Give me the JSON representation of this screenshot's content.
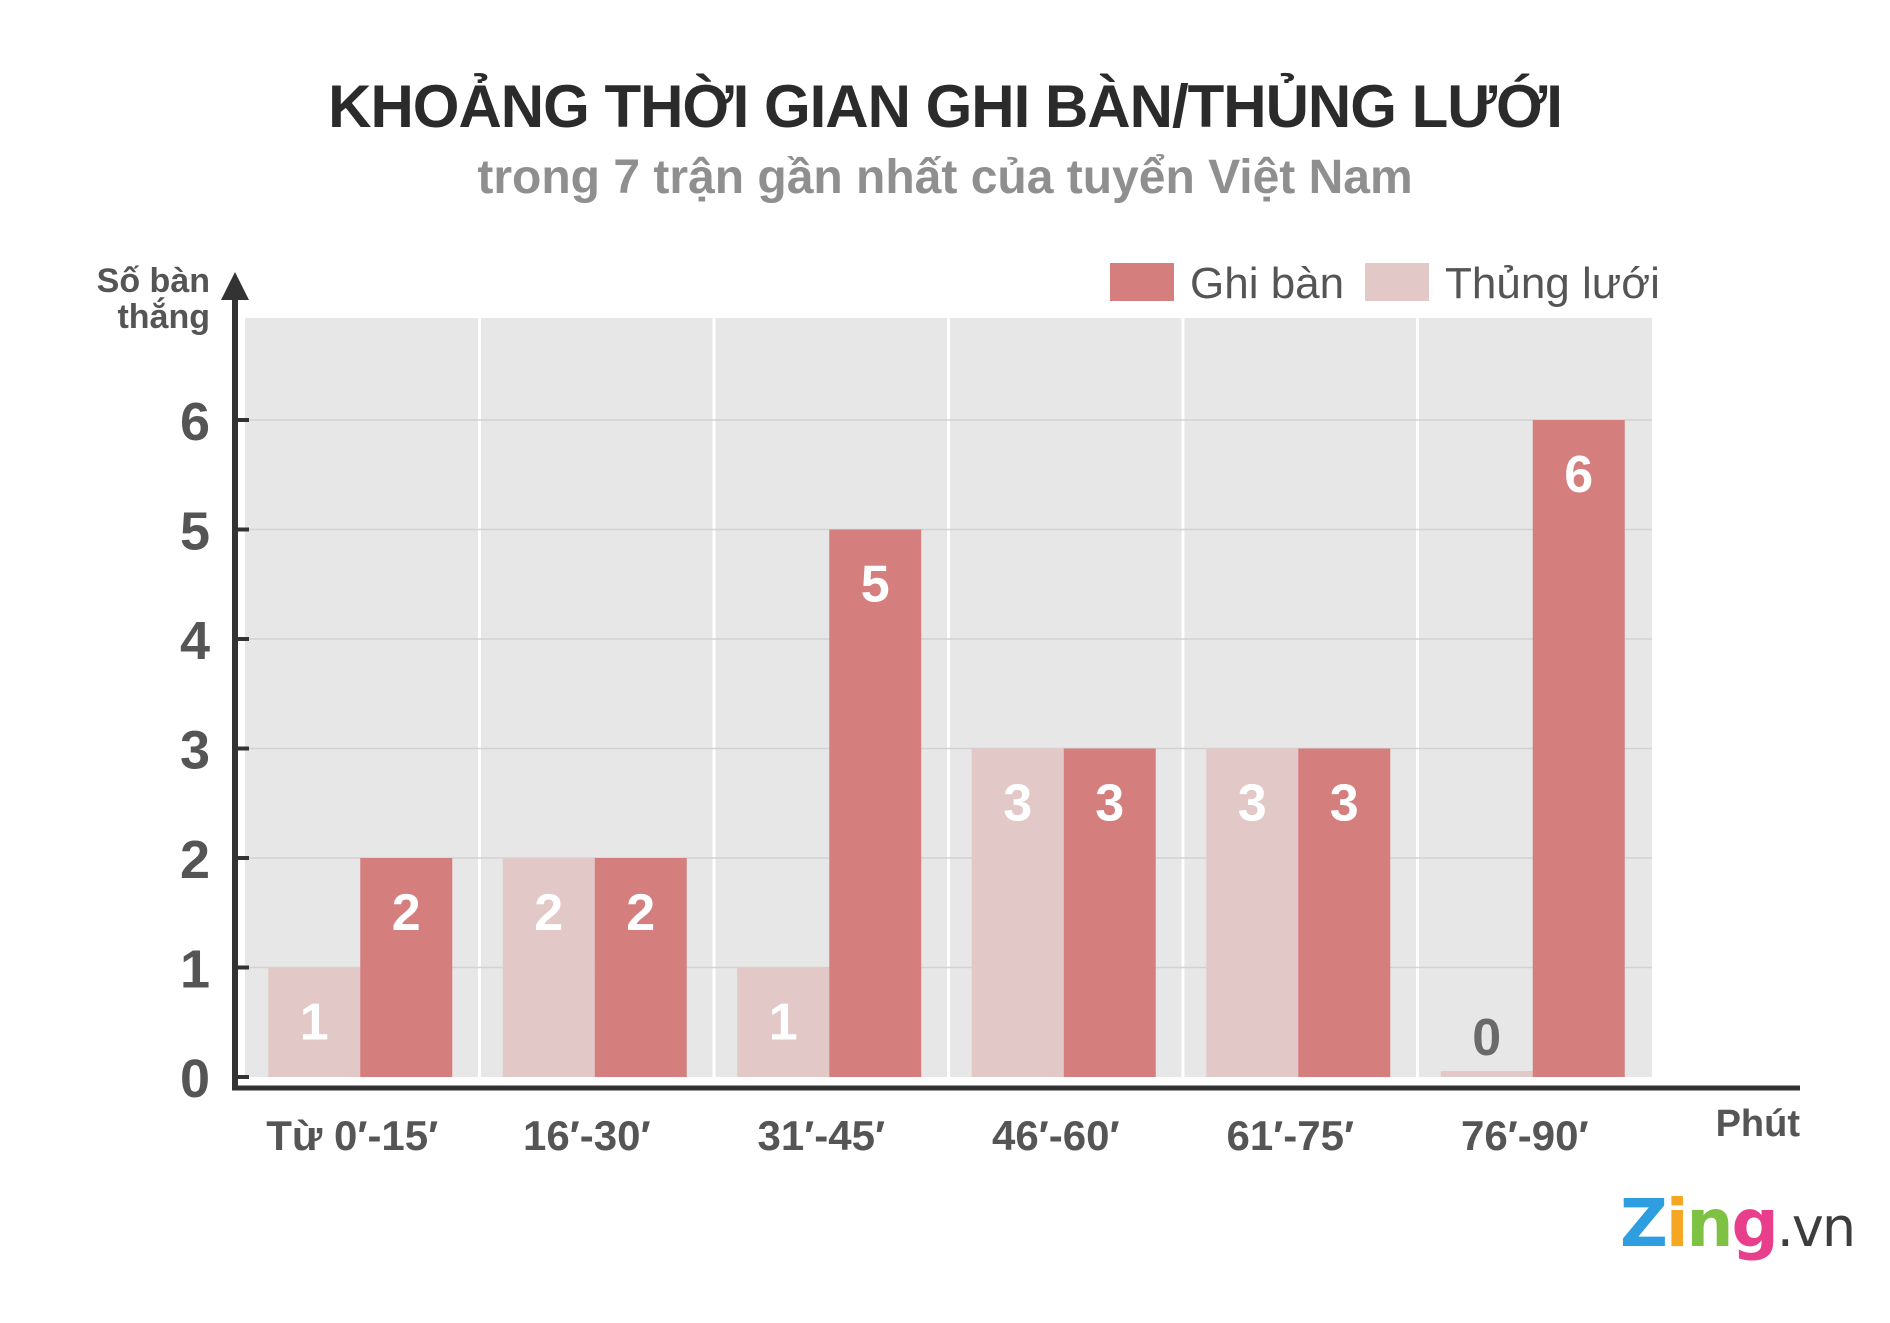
{
  "chart_data": {
    "type": "bar",
    "title": "KHOẢNG THỜI GIAN GHI BÀN/THỦNG LƯỚI",
    "subtitle": "trong 7 trận gần nhất của tuyển Việt Nam",
    "ylabel": [
      "Số bàn",
      "thắng"
    ],
    "xlabel": "Phút",
    "categories": [
      "Từ 0′-15′",
      "16′-30′",
      "31′-45′",
      "46′-60′",
      "61′-75′",
      "76′-90′"
    ],
    "series": [
      {
        "name": "Thủng lưới",
        "values": [
          1,
          2,
          1,
          3,
          3,
          0
        ],
        "color": "#e3c8c8"
      },
      {
        "name": "Ghi bàn",
        "values": [
          2,
          2,
          5,
          3,
          3,
          6
        ],
        "color": "#d47f7e"
      }
    ],
    "legend_order": [
      1,
      0
    ],
    "yticks": [
      0,
      1,
      2,
      3,
      4,
      5,
      6
    ],
    "ylim": [
      0,
      6.95
    ],
    "grid": true,
    "legend_position": "top-right"
  },
  "logo": {
    "z": "Z",
    "i": "i",
    "n": "n",
    "g": "g",
    "vn": ".vn"
  }
}
